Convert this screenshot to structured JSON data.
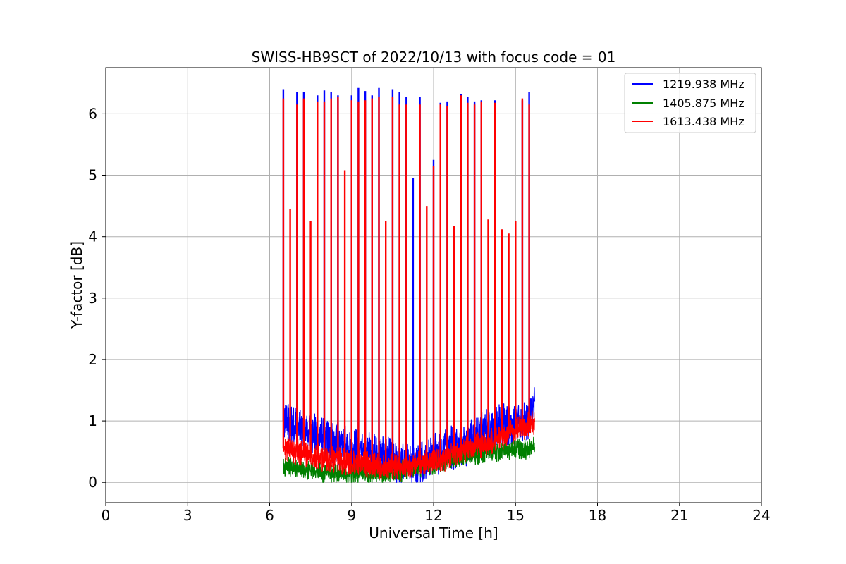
{
  "chart_data": {
    "type": "line",
    "title": "SWISS-HB9SCT of 2022/10/13 with focus code = 01",
    "xlabel": "Universal Time [h]",
    "ylabel": "Y-factor [dB]",
    "xlim": [
      0,
      24
    ],
    "ylim": [
      -0.33,
      6.75
    ],
    "xticks": [
      0,
      3,
      6,
      9,
      12,
      15,
      18,
      21,
      24
    ],
    "yticks": [
      0,
      1,
      2,
      3,
      4,
      5,
      6
    ],
    "grid": true,
    "legend_position": "top-right",
    "data_span": [
      6.5,
      15.7
    ],
    "series": [
      {
        "name": "1219.938 MHz",
        "color": "#0000ff",
        "baseline": [
          [
            6.5,
            1.0
          ],
          [
            7.0,
            0.9
          ],
          [
            7.5,
            0.8
          ],
          [
            8.0,
            0.7
          ],
          [
            8.5,
            0.6
          ],
          [
            9.0,
            0.55
          ],
          [
            9.5,
            0.5
          ],
          [
            10.0,
            0.4
          ],
          [
            10.5,
            0.35
          ],
          [
            11.0,
            0.3
          ],
          [
            11.5,
            0.35
          ],
          [
            12.0,
            0.45
          ],
          [
            12.5,
            0.55
          ],
          [
            13.0,
            0.6
          ],
          [
            13.5,
            0.7
          ],
          [
            14.0,
            0.85
          ],
          [
            14.5,
            0.95
          ],
          [
            15.0,
            0.95
          ],
          [
            15.5,
            1.0
          ],
          [
            15.7,
            1.3
          ]
        ],
        "noise": 0.25,
        "spikes": [
          [
            6.5,
            6.4
          ],
          [
            7.0,
            6.35
          ],
          [
            7.25,
            6.35
          ],
          [
            7.75,
            6.3
          ],
          [
            8.0,
            6.38
          ],
          [
            8.25,
            6.35
          ],
          [
            8.5,
            6.3
          ],
          [
            9.0,
            6.3
          ],
          [
            9.25,
            6.42
          ],
          [
            9.5,
            6.37
          ],
          [
            9.75,
            6.3
          ],
          [
            10.0,
            6.42
          ],
          [
            10.5,
            6.4
          ],
          [
            10.75,
            6.35
          ],
          [
            11.0,
            6.28
          ],
          [
            11.25,
            4.95
          ],
          [
            11.5,
            6.28
          ],
          [
            12.0,
            5.25
          ],
          [
            12.25,
            6.18
          ],
          [
            12.5,
            6.2
          ],
          [
            13.0,
            6.32
          ],
          [
            13.25,
            6.28
          ],
          [
            13.5,
            6.2
          ],
          [
            13.75,
            6.22
          ],
          [
            14.25,
            6.22
          ],
          [
            15.25,
            6.22
          ],
          [
            15.5,
            6.35
          ]
        ]
      },
      {
        "name": "1405.875 MHz",
        "color": "#008000",
        "baseline": [
          [
            6.5,
            0.25
          ],
          [
            7.0,
            0.2
          ],
          [
            7.5,
            0.18
          ],
          [
            8.0,
            0.15
          ],
          [
            8.5,
            0.15
          ],
          [
            9.0,
            0.15
          ],
          [
            9.5,
            0.15
          ],
          [
            10.0,
            0.15
          ],
          [
            10.5,
            0.15
          ],
          [
            11.0,
            0.2
          ],
          [
            11.5,
            0.25
          ],
          [
            12.0,
            0.3
          ],
          [
            12.5,
            0.35
          ],
          [
            13.0,
            0.4
          ],
          [
            13.5,
            0.45
          ],
          [
            14.0,
            0.5
          ],
          [
            14.5,
            0.5
          ],
          [
            15.0,
            0.55
          ],
          [
            15.5,
            0.55
          ],
          [
            15.7,
            0.6
          ]
        ],
        "noise": 0.12,
        "spikes": []
      },
      {
        "name": "1613.438 MHz",
        "color": "#ff0000",
        "baseline": [
          [
            6.5,
            0.55
          ],
          [
            7.0,
            0.5
          ],
          [
            7.5,
            0.45
          ],
          [
            8.0,
            0.4
          ],
          [
            8.5,
            0.35
          ],
          [
            9.0,
            0.32
          ],
          [
            9.5,
            0.3
          ],
          [
            10.0,
            0.25
          ],
          [
            10.5,
            0.25
          ],
          [
            11.0,
            0.25
          ],
          [
            11.5,
            0.3
          ],
          [
            12.0,
            0.35
          ],
          [
            12.5,
            0.4
          ],
          [
            13.0,
            0.5
          ],
          [
            13.5,
            0.6
          ],
          [
            14.0,
            0.65
          ],
          [
            14.5,
            0.75
          ],
          [
            15.0,
            0.85
          ],
          [
            15.5,
            0.95
          ],
          [
            15.7,
            1.0
          ]
        ],
        "noise": 0.15,
        "spikes": [
          [
            6.5,
            6.25
          ],
          [
            6.75,
            4.45
          ],
          [
            7.0,
            6.15
          ],
          [
            7.25,
            6.25
          ],
          [
            7.5,
            4.25
          ],
          [
            7.75,
            6.2
          ],
          [
            8.0,
            6.2
          ],
          [
            8.25,
            6.25
          ],
          [
            8.5,
            6.28
          ],
          [
            8.75,
            5.08
          ],
          [
            9.0,
            6.22
          ],
          [
            9.25,
            6.2
          ],
          [
            9.5,
            6.22
          ],
          [
            9.75,
            6.25
          ],
          [
            10.0,
            6.28
          ],
          [
            10.25,
            4.25
          ],
          [
            10.5,
            6.28
          ],
          [
            10.75,
            6.15
          ],
          [
            11.0,
            6.15
          ],
          [
            11.5,
            6.15
          ],
          [
            11.75,
            4.5
          ],
          [
            12.0,
            5.15
          ],
          [
            12.25,
            6.15
          ],
          [
            12.5,
            6.12
          ],
          [
            12.75,
            4.18
          ],
          [
            13.0,
            6.3
          ],
          [
            13.25,
            6.18
          ],
          [
            13.5,
            6.15
          ],
          [
            13.75,
            6.2
          ],
          [
            14.0,
            4.28
          ],
          [
            14.25,
            6.18
          ],
          [
            14.5,
            4.12
          ],
          [
            14.75,
            4.05
          ],
          [
            15.0,
            4.25
          ],
          [
            15.25,
            6.25
          ],
          [
            15.5,
            6.15
          ]
        ]
      }
    ]
  }
}
